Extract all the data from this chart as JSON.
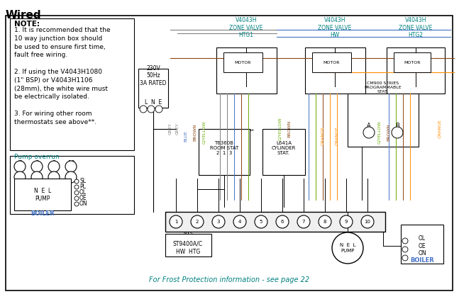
{
  "title": "Wired",
  "bg_color": "#ffffff",
  "border_color": "#000000",
  "note_text": "NOTE:",
  "note_lines": [
    "1. It is recommended that the",
    "10 way junction box should",
    "be used to ensure first time,",
    "fault free wiring.",
    "",
    "2. If using the V4043H1080",
    "(1\" BSP) or V4043H1106",
    "(28mm), the white wire must",
    "be electrically isolated.",
    "",
    "3. For wiring other room",
    "thermostats see above**."
  ],
  "pump_overrun_label": "Pump overrun",
  "frost_text": "For Frost Protection information - see page 22",
  "zone_valve_1_label": "V4043H\nZONE VALVE\nHTG1",
  "zone_valve_2_label": "V4043H\nZONE VALVE\nHW",
  "zone_valve_3_label": "V4043H\nZONE VALVE\nHTG2",
  "power_label": "230V\n50Hz\n3A RATED",
  "lne_label": "L  N  E",
  "t6360b_label": "T6360B\nROOM STAT\n2  1  3",
  "l641a_label": "L641A\nCYLINDER\nSTAT.",
  "cm900_label": "CM900 SERIES\nPROGRAMMABLE\nSTAT.",
  "st9400_label": "ST9400A/C",
  "hwhtg_label": "HW HTG",
  "boiler_label": "BOILER",
  "pump_label": "PUMP",
  "wire_colors": {
    "grey": "#808080",
    "blue": "#4472c4",
    "brown": "#8B4513",
    "green_yellow": "#6aaa00",
    "orange": "#FF8C00",
    "black": "#000000"
  },
  "color_label_grey": "#808080",
  "color_label_blue": "#4472c4",
  "color_label_brown": "#8B4513",
  "color_label_orange": "#FF8C00",
  "color_label_green": "#6aaa00",
  "color_label_teal": "#008080"
}
